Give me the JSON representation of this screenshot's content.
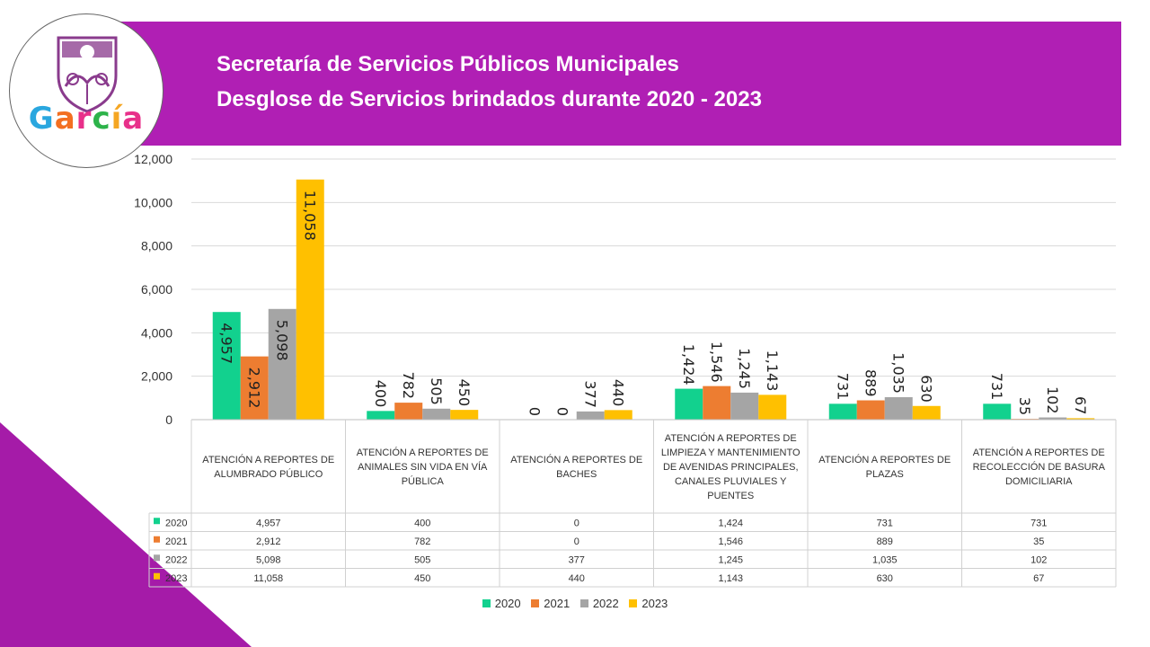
{
  "header": {
    "title_line1": "Secretaría de Servicios Públicos Municipales",
    "title_line2": "Desglose de Servicios brindados durante 2020 - 2023"
  },
  "logo": {
    "text": "García",
    "icon": "garcia-shield-logo"
  },
  "colors": {
    "banner": "#b01fb4",
    "accent": "#a51ba8",
    "series_2020": "#12d18e",
    "series_2021": "#ed7d31",
    "series_2022": "#a5a5a5",
    "series_2023": "#ffc000"
  },
  "chart_data": {
    "type": "bar",
    "title": "Desglose de Servicios brindados durante 2020 - 2023",
    "categories": [
      "ATENCIÓN A REPORTES DE ALUMBRADO PÚBLICO",
      "ATENCIÓN A  REPORTES DE ANIMALES SIN VIDA EN VÍA PÚBLICA",
      "ATENCIÓN A REPORTES DE BACHES",
      "ATENCIÓN A REPORTES DE LIMPIEZA Y MANTENIMIENTO DE AVENIDAS PRINCIPALES, CANALES PLUVIALES Y PUENTES",
      "ATENCIÓN A REPORTES DE PLAZAS",
      "ATENCIÓN A REPORTES DE RECOLECCIÓN DE BASURA DOMICILIARIA"
    ],
    "series": [
      {
        "name": "2020",
        "values": [
          4957,
          400,
          0,
          1424,
          731,
          731
        ],
        "labels": [
          "4,957",
          "400",
          "0",
          "1,424",
          "731",
          "731"
        ]
      },
      {
        "name": "2021",
        "values": [
          2912,
          782,
          0,
          1546,
          889,
          35
        ],
        "labels": [
          "2,912",
          "782",
          "0",
          "1,546",
          "889",
          "35"
        ]
      },
      {
        "name": "2022",
        "values": [
          5098,
          505,
          377,
          1245,
          1035,
          102
        ],
        "labels": [
          "5,098",
          "505",
          "377",
          "1,245",
          "1,035",
          "102"
        ]
      },
      {
        "name": "2023",
        "values": [
          11058,
          450,
          440,
          1143,
          630,
          67
        ],
        "labels": [
          "11,058",
          "450",
          "440",
          "1,143",
          "630",
          "67"
        ]
      }
    ],
    "ylim": [
      0,
      12000
    ],
    "yticks": [
      0,
      2000,
      4000,
      6000,
      8000,
      10000,
      12000
    ],
    "ytick_labels": [
      "0",
      "2,000",
      "4,000",
      "6,000",
      "8,000",
      "10,000",
      "12,000"
    ],
    "grid": true,
    "legend_position": "bottom",
    "data_table": true
  }
}
